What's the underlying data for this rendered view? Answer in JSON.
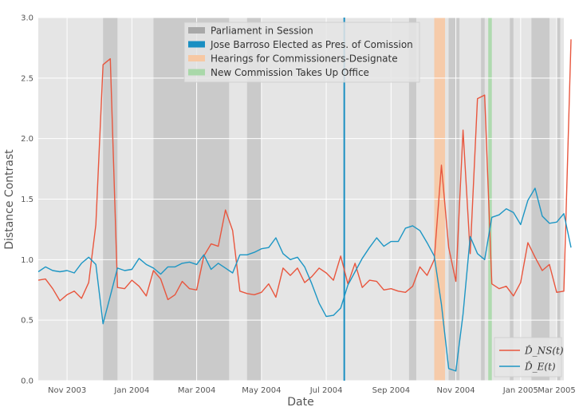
{
  "chart_data": {
    "type": "line",
    "xlabel": "Date",
    "ylabel": "Distance Contrast",
    "xlim": [
      0,
      73
    ],
    "ylim": [
      0.0,
      3.0
    ],
    "yticks": [
      0.0,
      0.5,
      1.0,
      1.5,
      2.0,
      2.5,
      3.0
    ],
    "ytick_labels": [
      "0.0",
      "0.5",
      "1.0",
      "1.5",
      "2.0",
      "2.5",
      "3.0"
    ],
    "xticks": [
      4,
      13,
      22,
      31,
      40,
      49,
      58,
      67,
      72
    ],
    "xtick_labels": [
      "Nov 2003",
      "Jan 2004",
      "Mar 2004",
      "May 2004",
      "Jul 2004",
      "Sep 2004",
      "Nov 2004",
      "Jan 2005",
      "Mar 2005"
    ],
    "grid": true,
    "colors": {
      "plot_bg": "#e5e5e5",
      "grid": "#ffffff",
      "parliament": "#a8a8a8",
      "barroso": "#1a8fc2",
      "hearings": "#f7c8a3",
      "new_commission": "#a9d8a9",
      "dns": "#e8563e",
      "de": "#1d96c4"
    },
    "bands": {
      "parliament": [
        [
          9,
          11
        ],
        [
          16,
          26.5
        ],
        [
          29,
          31
        ],
        [
          51.5,
          52.5
        ],
        [
          57,
          58.5
        ],
        [
          61.5,
          62
        ],
        [
          65.5,
          66
        ],
        [
          68.5,
          71
        ],
        [
          72,
          72.5
        ]
      ],
      "hearings": [
        [
          55,
          56.5
        ]
      ],
      "new_commission": [
        [
          62.5,
          63
        ]
      ]
    },
    "vline_barroso": 42.5,
    "legend_bands": [
      {
        "key": "parliament",
        "label": "Parliament in Session"
      },
      {
        "key": "barroso",
        "label": "Jose Barroso Elected as Pres. of Comission"
      },
      {
        "key": "hearings",
        "label": "Hearings for Commissioners-Designate"
      },
      {
        "key": "new_commission",
        "label": "New Commission Takes Up Office"
      }
    ],
    "series": [
      {
        "name": "D_NS(t)",
        "label": "D̂_NS(t)",
        "color_key": "dns",
        "values": [
          0.83,
          0.84,
          0.76,
          0.66,
          0.71,
          0.74,
          0.68,
          0.81,
          1.29,
          2.61,
          2.66,
          0.77,
          0.76,
          0.83,
          0.78,
          0.7,
          0.91,
          0.84,
          0.67,
          0.71,
          0.82,
          0.76,
          0.75,
          1.03,
          1.13,
          1.11,
          1.41,
          1.24,
          0.74,
          0.72,
          0.71,
          0.73,
          0.8,
          0.69,
          0.93,
          0.87,
          0.93,
          0.81,
          0.86,
          0.93,
          0.89,
          0.83,
          1.03,
          0.8,
          0.97,
          0.77,
          0.83,
          0.82,
          0.75,
          0.76,
          0.74,
          0.73,
          0.78,
          0.94,
          0.87,
          1.0,
          1.78,
          1.1,
          0.82,
          2.07,
          1.05,
          2.33,
          2.36,
          0.8,
          0.76,
          0.78,
          0.7,
          0.81,
          1.14,
          1.02,
          0.91,
          0.96,
          0.73,
          0.74,
          2.82
        ]
      },
      {
        "name": "D_E(t)",
        "label": "D̂_E(t)",
        "color_key": "de",
        "values": [
          0.9,
          0.94,
          0.91,
          0.9,
          0.91,
          0.89,
          0.97,
          1.02,
          0.96,
          0.47,
          0.7,
          0.93,
          0.91,
          0.92,
          1.01,
          0.96,
          0.93,
          0.88,
          0.94,
          0.94,
          0.97,
          0.98,
          0.96,
          1.04,
          0.92,
          0.97,
          0.93,
          0.89,
          1.04,
          1.04,
          1.06,
          1.09,
          1.1,
          1.18,
          1.05,
          1.0,
          1.02,
          0.94,
          0.8,
          0.64,
          0.53,
          0.54,
          0.6,
          0.79,
          0.9,
          1.01,
          1.1,
          1.18,
          1.11,
          1.15,
          1.15,
          1.26,
          1.28,
          1.24,
          1.14,
          1.03,
          0.63,
          0.1,
          0.08,
          0.55,
          1.19,
          1.05,
          1.0,
          1.35,
          1.37,
          1.42,
          1.39,
          1.29,
          1.49,
          1.59,
          1.36,
          1.3,
          1.31,
          1.38,
          1.1
        ]
      }
    ]
  }
}
